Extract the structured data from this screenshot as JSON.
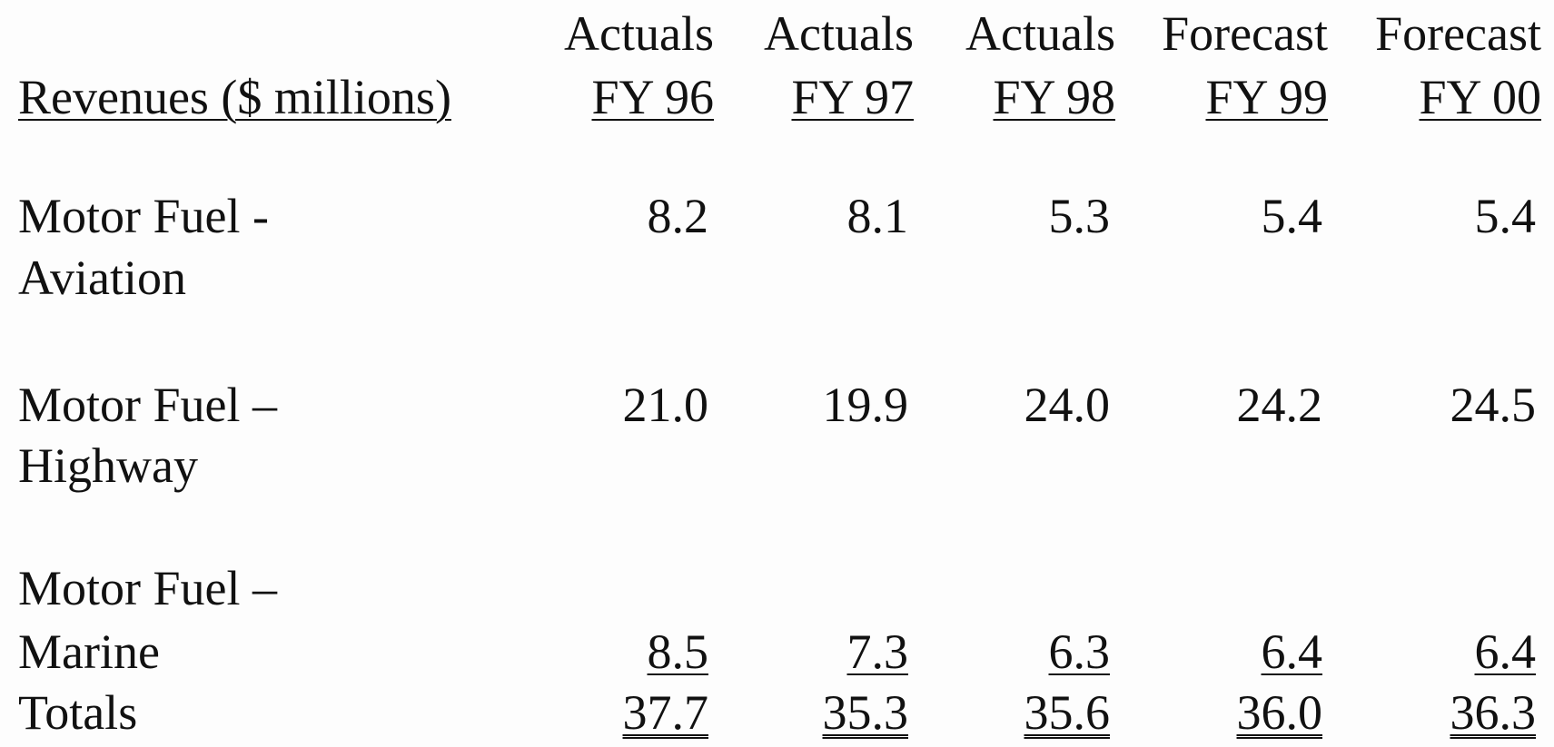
{
  "table": {
    "header": {
      "label": "Revenues ($ millions)",
      "columns": [
        {
          "kind": "Actuals",
          "year": "FY 96"
        },
        {
          "kind": "Actuals",
          "year": "FY 97"
        },
        {
          "kind": "Actuals",
          "year": "FY 98"
        },
        {
          "kind": "Forecast",
          "year": "FY 99"
        },
        {
          "kind": "Forecast",
          "year": "FY 00"
        }
      ]
    },
    "rows": [
      {
        "label": [
          "Motor Fuel -",
          "Aviation"
        ],
        "values": [
          "8.2",
          "8.1",
          "5.3",
          "5.4",
          "5.4"
        ]
      },
      {
        "label": [
          "Motor Fuel –",
          "Highway"
        ],
        "values": [
          "21.0",
          "19.9",
          "24.0",
          "24.2",
          "24.5"
        ]
      },
      {
        "label": [
          "Motor Fuel –",
          "Marine"
        ],
        "values": [
          "8.5",
          "7.3",
          "6.3",
          "6.4",
          "6.4"
        ]
      }
    ],
    "totals": {
      "label": "Totals",
      "values": [
        "37.7",
        "35.3",
        "35.6",
        "36.0",
        "36.3"
      ]
    }
  }
}
